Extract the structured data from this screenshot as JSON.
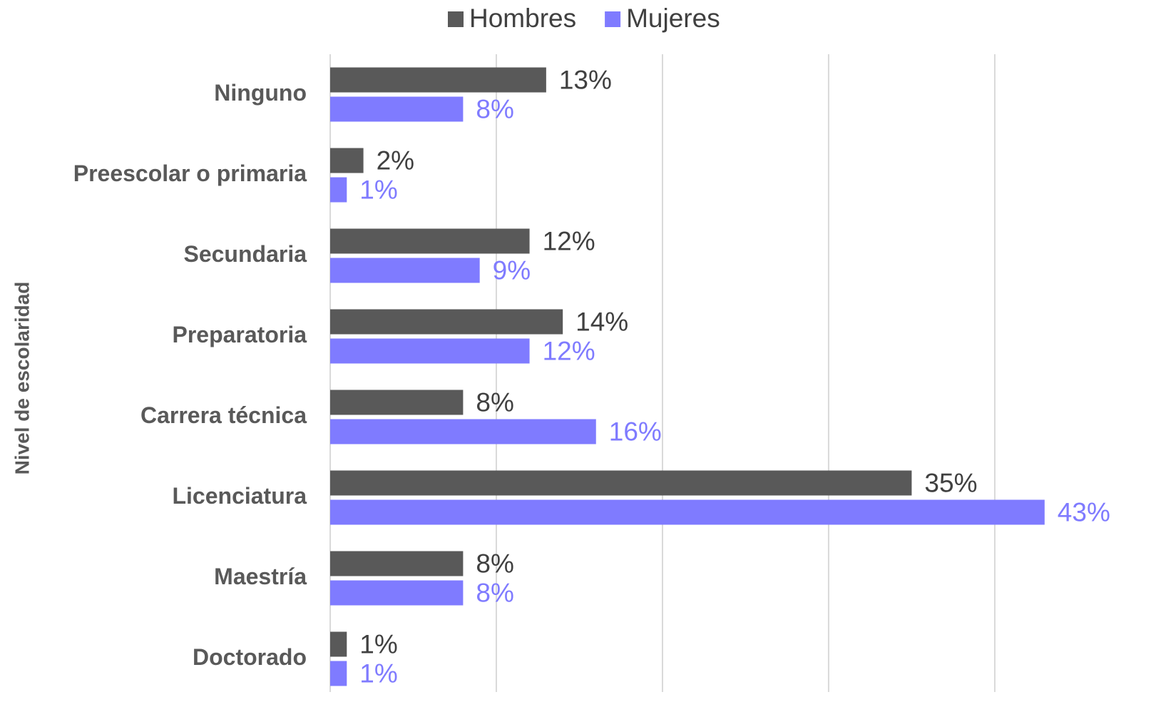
{
  "chart_data": {
    "type": "hbar",
    "y_label": "Nivel de escolaridad",
    "categories": [
      "Ninguno",
      "Preescolar o primaria",
      "Secundaria",
      "Preparatoria",
      "Carrera técnica",
      "Licenciatura",
      "Maestría",
      "Doctorado"
    ],
    "series": [
      {
        "name": "Hombres",
        "color": "#595959",
        "label_color": "#404040",
        "values": [
          13,
          2,
          12,
          14,
          8,
          35,
          8,
          1
        ],
        "value_labels": [
          "13%",
          "2%",
          "12%",
          "14%",
          "8%",
          "35%",
          "8%",
          "1%"
        ]
      },
      {
        "name": "Mujeres",
        "color": "#7f7bff",
        "label_color": "#7f7bff",
        "values": [
          8,
          1,
          9,
          12,
          16,
          43,
          8,
          1
        ],
        "value_labels": [
          "8%",
          "1%",
          "9%",
          "12%",
          "16%",
          "43%",
          "8%",
          "1%"
        ]
      }
    ],
    "xlim": [
      0,
      47
    ],
    "xticks": [
      0,
      10,
      20,
      30,
      40
    ],
    "grid": true,
    "legend": "top"
  }
}
